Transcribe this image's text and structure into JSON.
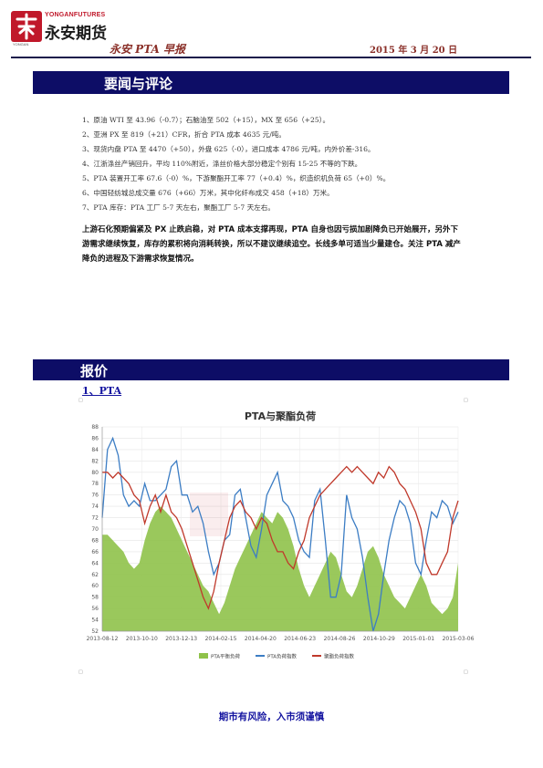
{
  "header": {
    "logo_en": "YONGANFUTURES",
    "logo_cn": "永安期货",
    "logo_sub": "YONGAN",
    "report_title": "永安 PTA 早报",
    "report_date": "2015 年 3 月 20 日",
    "logo_color": "#c0182a"
  },
  "section_news": {
    "title": "要闻与评论"
  },
  "news": [
    "1、原油 WTI 至 43.96（-0.7）；石脑油至 502（+15），MX 至 656（+25）。",
    "2、亚洲 PX 至 819（+21）CFR，折合 PTA 成本 4635 元/吨。",
    "3、现货内盘 PTA 至 4470（+50），外盘 625（-0），进口成本 4786 元/吨，内外价差-316。",
    "4、江浙涤丝产销回升，平均 110%附近，涤丝价格大部分稳定个别有 15-25 不等的下跌。",
    "5、PTA 装置开工率 67.6（-0）%，下游聚酯开工率 77（+0.4）%，织造织机负荷 65（+0）%。",
    "6、中国轻纺城总成交量 676（+66）万米，其中化纤布成交 458（+18）万米。",
    "7、PTA 库存：PTA 工厂 5-7 天左右，聚酯工厂 5-7 天左右。"
  ],
  "commentary": "上游石化预期偏紧及 PX 止跌启稳，对 PTA 成本支撑再现，PTA 自身也因亏损加剧降负已开始展开，另外下游需求继续恢复，库存的累积将向消耗转换，所以不建议继续追空。长线多单可适当少量建仓。关注 PTA 减产降负的进程及下游需求恢复情况。",
  "section_price": {
    "title": "报价"
  },
  "subsection": "1、PTA",
  "chart_data": {
    "type": "line",
    "title": "PTA与聚酯负荷",
    "x_ticks": [
      "2013-08-12",
      "2013-10-10",
      "2013-12-13",
      "2014-02-15",
      "2014-04-20",
      "2014-06-23",
      "2014-08-26",
      "2014-10-29",
      "2015-01-01",
      "2015-03-06"
    ],
    "ylim": [
      52,
      88
    ],
    "y_ticks": [
      52,
      54,
      56,
      58,
      60,
      62,
      64,
      66,
      68,
      70,
      72,
      74,
      76,
      78,
      80,
      82,
      84,
      86,
      88
    ],
    "grid": true,
    "legend_position": "bottom",
    "series": [
      {
        "name": "PTA平衡负荷",
        "kind": "area",
        "color": "#8fc24a",
        "values": [
          69,
          69,
          68,
          67,
          66,
          64,
          63,
          64,
          68,
          71,
          73,
          74,
          73,
          72,
          70,
          68,
          66,
          64,
          62,
          60,
          59,
          57,
          55,
          57,
          60,
          63,
          65,
          67,
          69,
          71,
          73,
          72,
          71,
          73,
          72,
          70,
          67,
          63,
          60,
          58,
          60,
          62,
          64,
          66,
          65,
          62,
          59,
          58,
          60,
          63,
          66,
          67,
          65,
          62,
          60,
          58,
          57,
          56,
          58,
          60,
          62,
          60,
          57,
          56,
          55,
          56,
          58,
          64
        ]
      },
      {
        "name": "PTA负荷指数",
        "kind": "line",
        "color": "#3c7dc4",
        "values": [
          72,
          84,
          86,
          83,
          76,
          74,
          75,
          74,
          78,
          75,
          75,
          76,
          77,
          81,
          82,
          76,
          76,
          73,
          74,
          71,
          66,
          62,
          64,
          68,
          69,
          76,
          77,
          72,
          67,
          65,
          70,
          76,
          78,
          80,
          75,
          74,
          72,
          68,
          66,
          65,
          75,
          77,
          68,
          58,
          58,
          62,
          76,
          72,
          70,
          65,
          58,
          52,
          55,
          62,
          68,
          72,
          75,
          74,
          71,
          64,
          62,
          68,
          73,
          72,
          75,
          74,
          71,
          73
        ]
      },
      {
        "name": "聚酯负荷指数",
        "kind": "line",
        "color": "#c0392b",
        "values": [
          80,
          80,
          79,
          80,
          79,
          78,
          76,
          75,
          71,
          74,
          76,
          73,
          76,
          73,
          72,
          70,
          67,
          64,
          61,
          58,
          56,
          59,
          64,
          68,
          72,
          74,
          75,
          73,
          72,
          70,
          72,
          71,
          68,
          66,
          66,
          64,
          63,
          66,
          68,
          72,
          74,
          76,
          77,
          78,
          79,
          80,
          81,
          80,
          81,
          80,
          79,
          78,
          80,
          79,
          81,
          80,
          78,
          77,
          75,
          73,
          70,
          64,
          62,
          62,
          64,
          66,
          72,
          75
        ]
      }
    ]
  },
  "footer": "期市有风险，入市须谨慎"
}
